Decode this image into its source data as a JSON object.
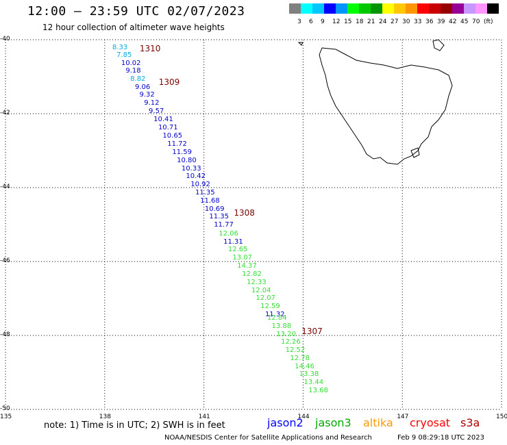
{
  "header": {
    "title": "12:00 – 23:59 UTC 02/07/2023",
    "subtitle": "12 hour collection of altimeter wave heights"
  },
  "colorbar": {
    "colors": [
      "#808080",
      "#00ffff",
      "#00c8ff",
      "#0000ff",
      "#0096ff",
      "#00ff00",
      "#00c800",
      "#009600",
      "#ffff00",
      "#ffc800",
      "#ff9600",
      "#ff0000",
      "#c80000",
      "#960000",
      "#960096",
      "#c896ff",
      "#ff96ff",
      "#000000"
    ],
    "labels": [
      "3",
      "6",
      "9",
      "12",
      "15",
      "18",
      "21",
      "24",
      "27",
      "30",
      "33",
      "36",
      "39",
      "42",
      "45",
      "70",
      "(ft)"
    ]
  },
  "axes": {
    "lat_labels": [
      "-40",
      "-42",
      "-44",
      "-46",
      "-48",
      "-50"
    ],
    "lon_labels": [
      "135",
      "138",
      "141",
      "144",
      "147",
      "150"
    ]
  },
  "passes": [
    {
      "id": "1310",
      "lat": -40.15
    },
    {
      "id": "1309",
      "lat": -41.05
    },
    {
      "id": "1308",
      "lat": -44.6
    },
    {
      "id": "1307",
      "lat": -47.8
    }
  ],
  "observations": [
    {
      "v": "8.33",
      "lat": -40.15,
      "c": "#00aadd"
    },
    {
      "v": "7.85",
      "lat": -40.35,
      "c": "#00aadd"
    },
    {
      "v": "10.02",
      "lat": -40.57,
      "c": "#0000cc"
    },
    {
      "v": "9.18",
      "lat": -40.78,
      "c": "#0000cc"
    },
    {
      "v": "8.82",
      "lat": -41.0,
      "c": "#00aadd"
    },
    {
      "v": "9.06",
      "lat": -41.22,
      "c": "#0000cc"
    },
    {
      "v": "9.32",
      "lat": -41.43,
      "c": "#0000cc"
    },
    {
      "v": "9.12",
      "lat": -41.65,
      "c": "#0000cc"
    },
    {
      "v": "9.57",
      "lat": -41.87,
      "c": "#0000cc"
    },
    {
      "v": "10.41",
      "lat": -42.1,
      "c": "#0000cc"
    },
    {
      "v": "10.71",
      "lat": -42.32,
      "c": "#0000cc"
    },
    {
      "v": "10.65",
      "lat": -42.53,
      "c": "#0000cc"
    },
    {
      "v": "11.72",
      "lat": -42.75,
      "c": "#0000cc"
    },
    {
      "v": "11.59",
      "lat": -42.98,
      "c": "#0000cc"
    },
    {
      "v": "10.80",
      "lat": -43.2,
      "c": "#0000cc"
    },
    {
      "v": "10.33",
      "lat": -43.42,
      "c": "#0000cc"
    },
    {
      "v": "10.42",
      "lat": -43.63,
      "c": "#0000cc"
    },
    {
      "v": "10.92",
      "lat": -43.85,
      "c": "#0000cc"
    },
    {
      "v": "11.35",
      "lat": -44.07,
      "c": "#0000cc"
    },
    {
      "v": "11.68",
      "lat": -44.3,
      "c": "#0000cc"
    },
    {
      "v": "10.69",
      "lat": -44.52,
      "c": "#0000cc"
    },
    {
      "v": "11.35",
      "lat": -44.73,
      "c": "#0000cc"
    },
    {
      "v": "11.77",
      "lat": -44.95,
      "c": "#0000cc"
    },
    {
      "v": "12.06",
      "lat": -45.18,
      "c": "#33dd33"
    },
    {
      "v": "11.31",
      "lat": -45.4,
      "c": "#0000cc"
    },
    {
      "v": "12.65",
      "lat": -45.62,
      "c": "#33dd33"
    },
    {
      "v": "13.07",
      "lat": -45.83,
      "c": "#33dd33"
    },
    {
      "v": "14.37",
      "lat": -46.05,
      "c": "#33dd33"
    },
    {
      "v": "12.82",
      "lat": -46.28,
      "c": "#33dd33"
    },
    {
      "v": "12.33",
      "lat": -46.5,
      "c": "#33dd33"
    },
    {
      "v": "12.04",
      "lat": -46.72,
      "c": "#33dd33"
    },
    {
      "v": "12.07",
      "lat": -46.93,
      "c": "#33dd33"
    },
    {
      "v": "12.59",
      "lat": -47.15,
      "c": "#33dd33"
    },
    {
      "v": "11.32",
      "lat": -47.37,
      "c": "#0000cc"
    },
    {
      "v": "12.84",
      "lat": -47.47,
      "c": "#33dd33"
    },
    {
      "v": "13.88",
      "lat": -47.68,
      "c": "#33dd33"
    },
    {
      "v": "13.20",
      "lat": -47.9,
      "c": "#33dd33"
    },
    {
      "v": "12.26",
      "lat": -48.12,
      "c": "#33dd33"
    },
    {
      "v": "12.52",
      "lat": -48.33,
      "c": "#33dd33"
    },
    {
      "v": "12.78",
      "lat": -48.55,
      "c": "#33dd33"
    },
    {
      "v": "14.46",
      "lat": -48.77,
      "c": "#33dd33"
    },
    {
      "v": "13.38",
      "lat": -48.98,
      "c": "#33dd33"
    },
    {
      "v": "13.44",
      "lat": -49.2,
      "c": "#33dd33"
    },
    {
      "v": "13.68",
      "lat": -49.42,
      "c": "#33dd33"
    }
  ],
  "footer": {
    "note": "note: 1) Time is in UTC; 2) SWH is in feet",
    "satellites": [
      {
        "name": "jason2",
        "color": "#0000ff"
      },
      {
        "name": "jason3",
        "color": "#00aa00"
      },
      {
        "name": "altika",
        "color": "#ff9900"
      },
      {
        "name": "cryosat",
        "color": "#ff0000"
      },
      {
        "name": "s3a",
        "color": "#aa0000"
      }
    ],
    "credit": "NOAA/NESDIS Center for Satellite Applications and Research",
    "timestamp": "Feb  9 08:29:18 UTC 2023"
  }
}
